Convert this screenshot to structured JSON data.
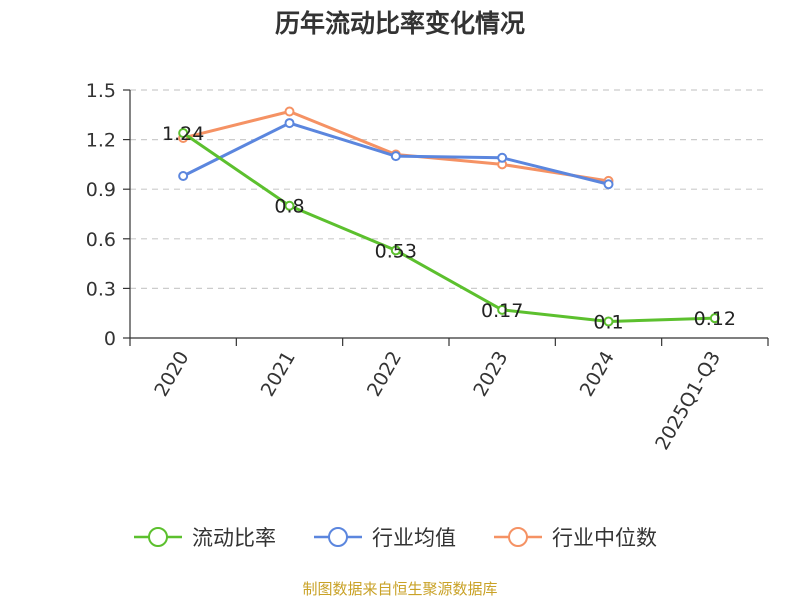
{
  "chart_data": {
    "type": "line",
    "title": "历年流动比率变化情况",
    "categories": [
      "2020",
      "2021",
      "2022",
      "2023",
      "2024",
      "2025Q1-Q3"
    ],
    "ylim": [
      0,
      1.5
    ],
    "yticks": [
      "0",
      "0.3",
      "0.6",
      "0.9",
      "1.2",
      "1.5"
    ],
    "grid": true,
    "legend_position": "bottom",
    "series": [
      {
        "name": "流动比率",
        "color": "#5cc02e",
        "values": [
          1.24,
          0.8,
          0.53,
          0.17,
          0.1,
          0.12
        ],
        "labels": [
          "1.24",
          "0.8",
          "0.53",
          "0.17",
          "0.1",
          "0.12"
        ]
      },
      {
        "name": "行业均值",
        "color": "#5b86de",
        "values": [
          0.98,
          1.3,
          1.1,
          1.09,
          0.93,
          null
        ]
      },
      {
        "name": "行业中位数",
        "color": "#f59264",
        "values": [
          1.21,
          1.37,
          1.11,
          1.05,
          0.95,
          null
        ]
      }
    ]
  },
  "footer": {
    "source": "制图数据来自恒生聚源数据库"
  }
}
